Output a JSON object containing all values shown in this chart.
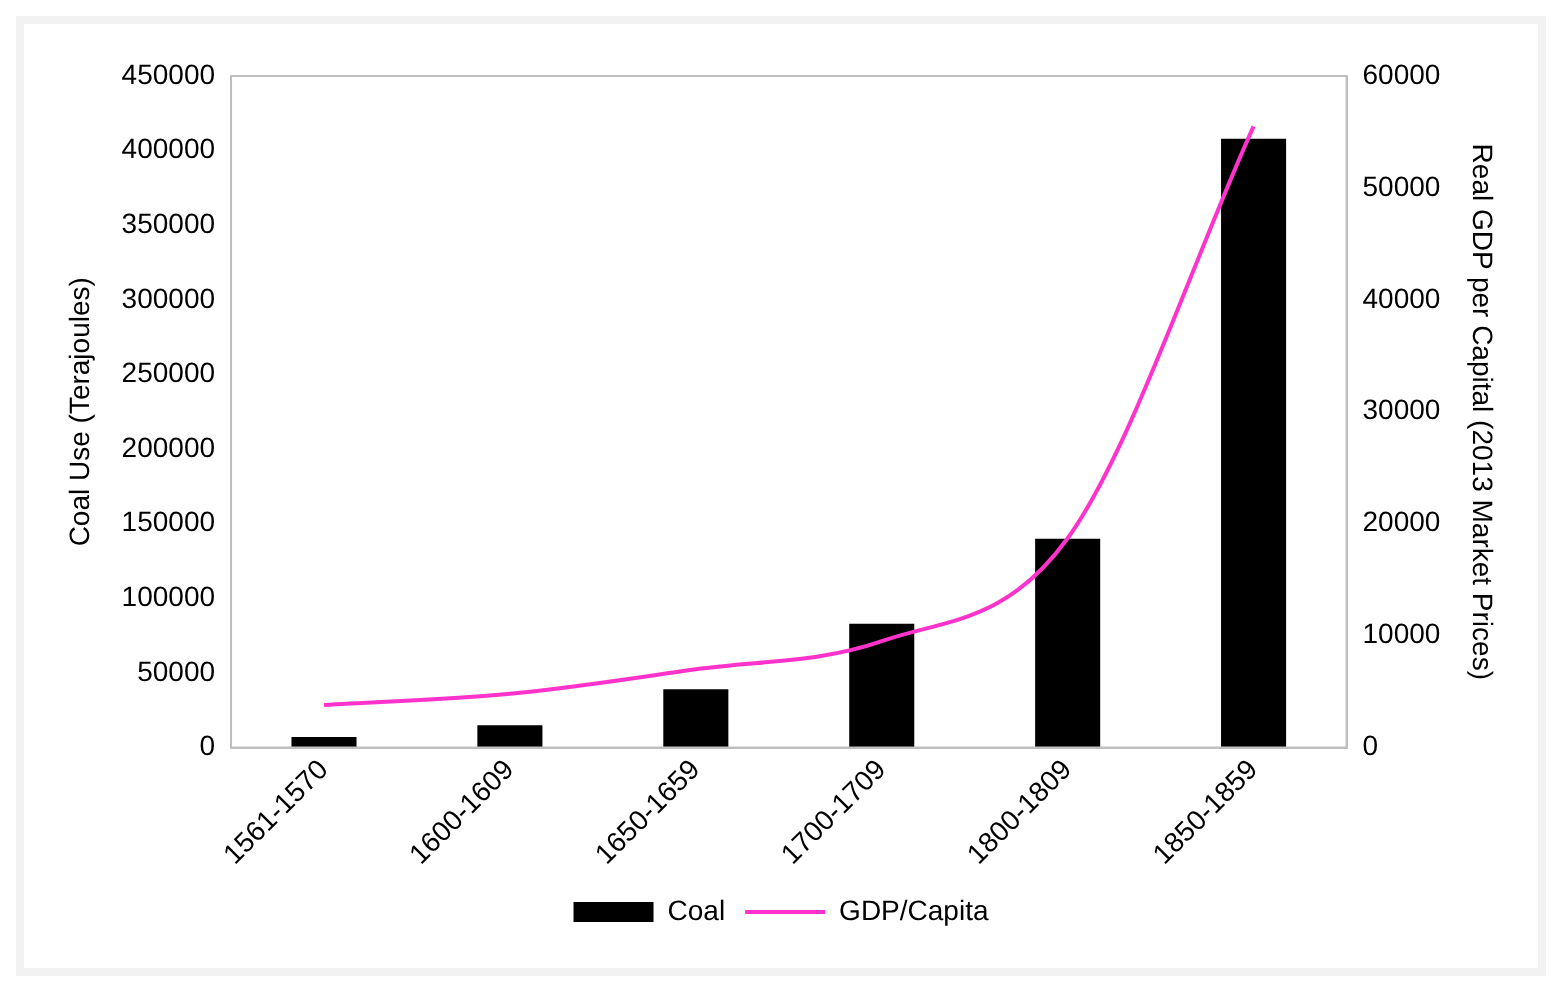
{
  "chart_data": {
    "type": "bar",
    "ylabel": "Coal Use (Terajoules)",
    "y2label": "Real GDP per Capital (2013 Market Prices)",
    "categories": [
      "1561-1570",
      "1600-1609",
      "1650-1659",
      "1700-1709",
      "1800-1809",
      "1850-1859"
    ],
    "series": [
      {
        "name": "Coal",
        "color": "#000000",
        "values": [
          7000,
          15000,
          39000,
          83000,
          140000,
          408000
        ]
      },
      {
        "name": "GDP/Capita",
        "type": "line",
        "axis": "y2",
        "color": "#ff33cc",
        "values": [
          3800,
          4800,
          7000,
          9500,
          18700,
          55500
        ]
      }
    ],
    "ylim": [
      0,
      450000
    ],
    "yticks": [
      0,
      50000,
      100000,
      150000,
      200000,
      250000,
      300000,
      350000,
      400000,
      450000
    ],
    "y2lim": [
      0,
      60000
    ],
    "y2ticks": [
      0,
      10000,
      20000,
      30000,
      40000,
      50000,
      60000
    ],
    "grid": false,
    "legend": "bottom",
    "marker": "none"
  }
}
